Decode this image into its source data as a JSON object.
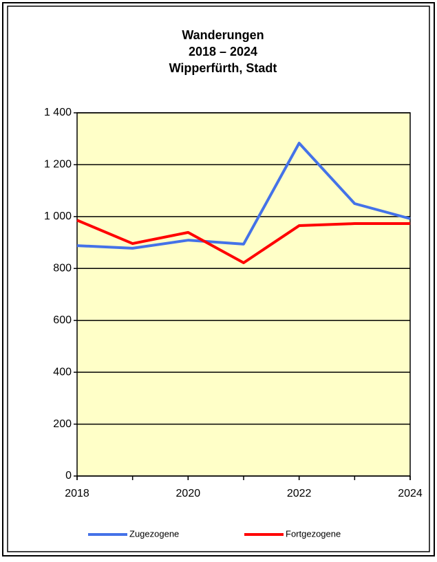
{
  "chart_data": {
    "type": "line",
    "title": [
      "Wanderungen",
      "2018 – 2024",
      "Wipperfürth, Stadt"
    ],
    "x": [
      2018,
      2019,
      2020,
      2021,
      2022,
      2023,
      2024
    ],
    "series": [
      {
        "name": "Zugezogene",
        "color": "#4472e8",
        "values": [
          888,
          878,
          909,
          894,
          1283,
          1050,
          992
        ]
      },
      {
        "name": "Fortgezogene",
        "color": "#ff0000",
        "values": [
          986,
          896,
          939,
          822,
          965,
          973,
          973
        ]
      }
    ],
    "xlim": [
      2018,
      2024
    ],
    "xticks": [
      2018,
      2020,
      2022,
      2024
    ],
    "ylim": [
      0,
      1400
    ],
    "yticks": [
      0,
      200,
      400,
      600,
      800,
      {
        "value": 1000,
        "label": "1 000"
      },
      {
        "value": 1200,
        "label": "1 200"
      },
      {
        "value": 1400,
        "label": "1 400"
      }
    ],
    "grid": true,
    "legend": "bottom",
    "background": "#ffffc8"
  }
}
